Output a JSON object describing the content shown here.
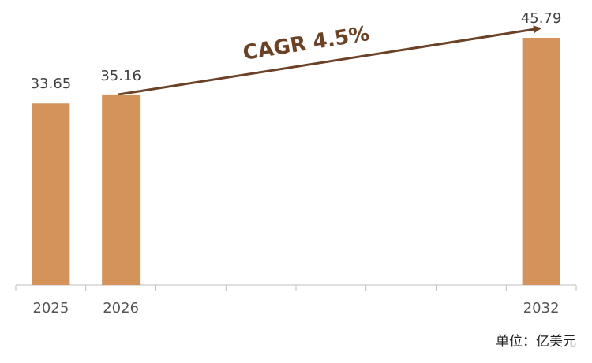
{
  "chart_data": {
    "type": "bar",
    "categories": [
      "2025",
      "2026",
      null,
      null,
      null,
      null,
      null,
      "2032"
    ],
    "values": [
      33.65,
      35.16,
      null,
      null,
      null,
      null,
      null,
      45.79
    ],
    "color": "#d4935a",
    "annotation": "CAGR 4.5%",
    "unit_label": "单位：亿美元"
  }
}
